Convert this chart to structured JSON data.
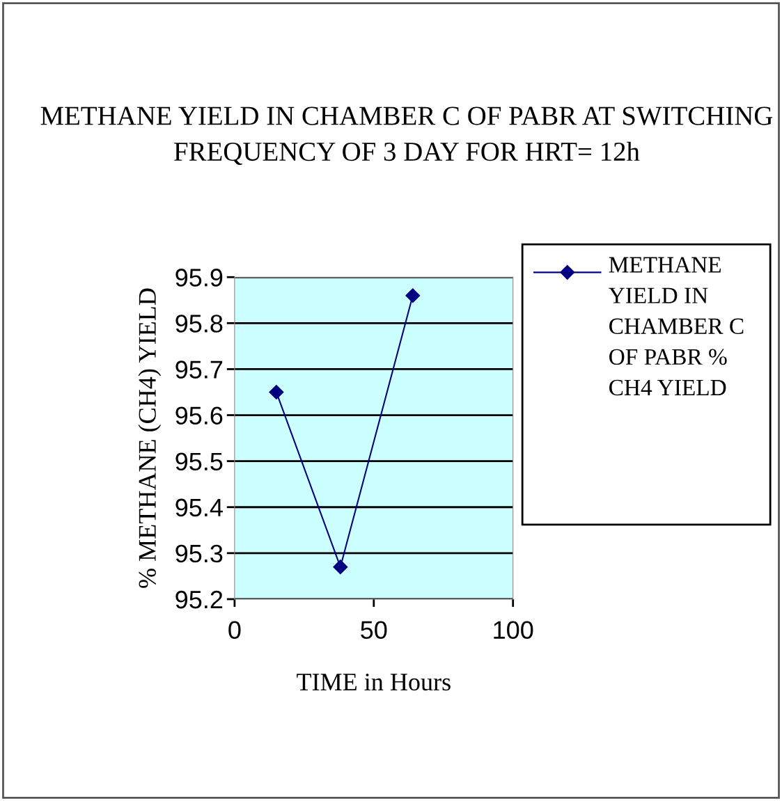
{
  "chart_data": {
    "type": "line",
    "title": "METHANE YIELD IN CHAMBER C OF PABR AT SWITCHING FREQUENCY OF 3 DAY FOR HRT= 12h",
    "xlabel": "TIME in Hours",
    "ylabel": "% METHANE (CH4) YIELD",
    "x": [
      15,
      38,
      64
    ],
    "series": [
      {
        "name": "METHANE YIELD IN CHAMBER C OF PABR % CH4 YIELD",
        "color": "#000080",
        "values": [
          95.65,
          95.27,
          95.86
        ]
      }
    ],
    "xlim": [
      0,
      100
    ],
    "xticks": [
      0,
      50,
      100
    ],
    "ylim": [
      95.2,
      95.9
    ],
    "yticks": [
      95.2,
      95.3,
      95.4,
      95.5,
      95.6,
      95.7,
      95.8,
      95.9
    ],
    "grid": "y",
    "legend": "right",
    "marker": "diamond",
    "line_style": "solid"
  }
}
